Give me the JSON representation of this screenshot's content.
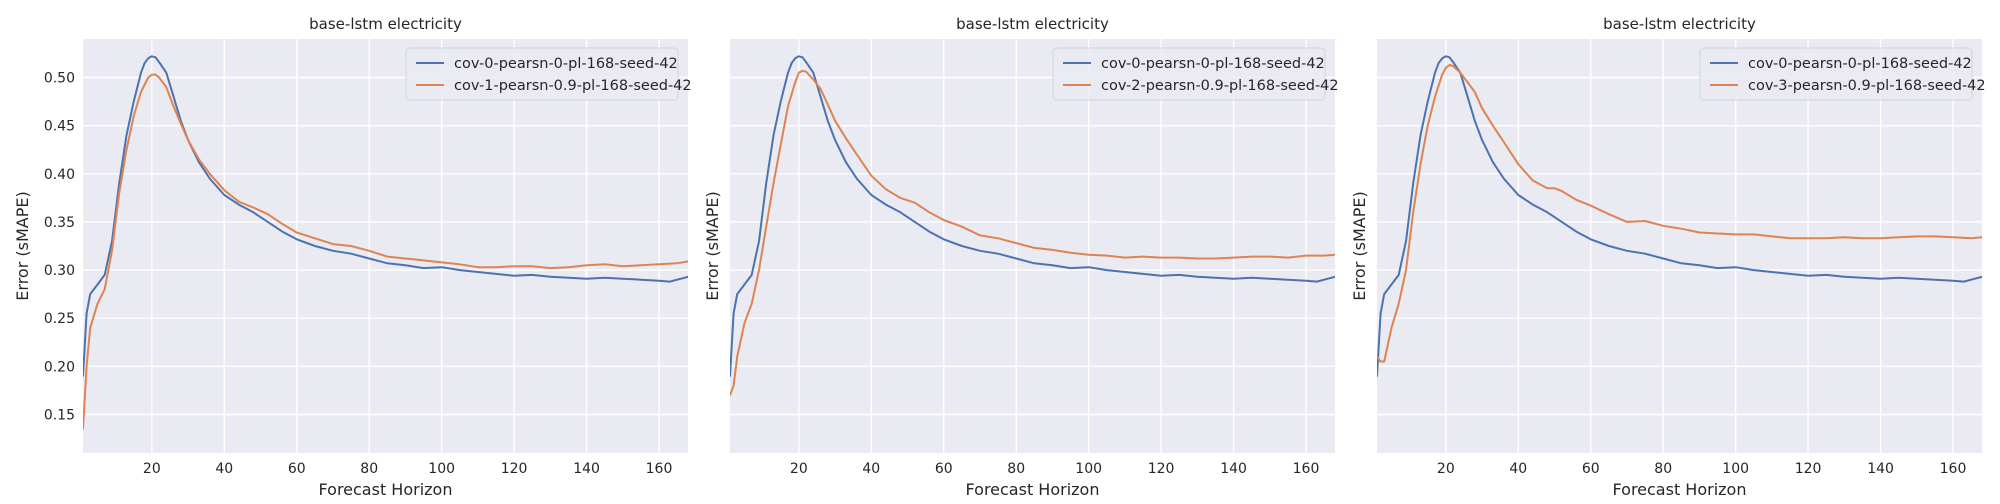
{
  "colors": {
    "background": "#ffffff",
    "plot_background": "#eaeaf2",
    "grid": "#ffffff",
    "series_blue": "#4c72b0",
    "series_orange": "#dd8452"
  },
  "chart_data": [
    {
      "type": "line",
      "title": "base-lstm electricity",
      "xlabel": "Forecast Horizon",
      "ylabel": "Error (sMAPE)",
      "xlim": [
        1,
        168
      ],
      "ylim": [
        0.11,
        0.54
      ],
      "xticks": [
        20,
        40,
        60,
        80,
        100,
        120,
        140,
        160
      ],
      "yticks": [
        0.15,
        0.2,
        0.25,
        0.3,
        0.35,
        0.4,
        0.45,
        0.5
      ],
      "show_y_tick_labels": true,
      "grid": true,
      "legend": "top-right",
      "series": [
        {
          "name": "cov-0-pearsn-0-pl-168-seed-42",
          "color": "#4c72b0",
          "x": [
            1,
            2,
            3,
            5,
            7,
            9,
            11,
            13,
            15,
            17,
            18,
            19,
            20,
            21,
            22,
            24,
            26,
            28,
            30,
            33,
            36,
            40,
            44,
            48,
            52,
            56,
            60,
            65,
            70,
            75,
            80,
            85,
            90,
            95,
            100,
            105,
            110,
            115,
            120,
            125,
            130,
            135,
            140,
            145,
            150,
            155,
            160,
            163,
            165,
            168
          ],
          "y": [
            0.19,
            0.255,
            0.275,
            0.285,
            0.295,
            0.33,
            0.39,
            0.44,
            0.475,
            0.505,
            0.515,
            0.52,
            0.522,
            0.521,
            0.516,
            0.505,
            0.48,
            0.455,
            0.435,
            0.412,
            0.395,
            0.378,
            0.368,
            0.36,
            0.35,
            0.34,
            0.332,
            0.325,
            0.32,
            0.317,
            0.312,
            0.307,
            0.305,
            0.302,
            0.303,
            0.3,
            0.298,
            0.296,
            0.294,
            0.295,
            0.293,
            0.292,
            0.291,
            0.292,
            0.291,
            0.29,
            0.289,
            0.288,
            0.29,
            0.293
          ]
        },
        {
          "name": "cov-1-pearsn-0.9-pl-168-seed-42",
          "color": "#dd8452",
          "x": [
            1,
            2,
            3,
            5,
            7,
            9,
            11,
            13,
            15,
            17,
            19,
            20,
            21,
            22,
            24,
            26,
            28,
            30,
            33,
            36,
            40,
            44,
            48,
            52,
            56,
            60,
            65,
            70,
            75,
            80,
            85,
            90,
            95,
            100,
            105,
            110,
            115,
            120,
            125,
            130,
            135,
            140,
            145,
            150,
            155,
            160,
            165,
            168
          ],
          "y": [
            0.135,
            0.2,
            0.24,
            0.265,
            0.28,
            0.32,
            0.38,
            0.425,
            0.46,
            0.485,
            0.5,
            0.503,
            0.503,
            0.5,
            0.49,
            0.47,
            0.452,
            0.435,
            0.415,
            0.4,
            0.383,
            0.371,
            0.365,
            0.358,
            0.348,
            0.339,
            0.333,
            0.327,
            0.325,
            0.32,
            0.314,
            0.312,
            0.31,
            0.308,
            0.306,
            0.303,
            0.303,
            0.304,
            0.304,
            0.302,
            0.303,
            0.305,
            0.306,
            0.304,
            0.305,
            0.306,
            0.307,
            0.309
          ]
        }
      ]
    },
    {
      "type": "line",
      "title": "base-lstm electricity",
      "xlabel": "Forecast Horizon",
      "ylabel": "Error (sMAPE)",
      "xlim": [
        1,
        168
      ],
      "ylim": [
        0.11,
        0.54
      ],
      "xticks": [
        20,
        40,
        60,
        80,
        100,
        120,
        140,
        160
      ],
      "yticks": [
        0.15,
        0.2,
        0.25,
        0.3,
        0.35,
        0.4,
        0.45,
        0.5
      ],
      "show_y_tick_labels": false,
      "grid": true,
      "legend": "top-right",
      "series": [
        {
          "name": "cov-0-pearsn-0-pl-168-seed-42",
          "color": "#4c72b0",
          "x": [
            1,
            2,
            3,
            5,
            7,
            9,
            11,
            13,
            15,
            17,
            18,
            19,
            20,
            21,
            22,
            24,
            26,
            28,
            30,
            33,
            36,
            40,
            44,
            48,
            52,
            56,
            60,
            65,
            70,
            75,
            80,
            85,
            90,
            95,
            100,
            105,
            110,
            115,
            120,
            125,
            130,
            135,
            140,
            145,
            150,
            155,
            160,
            163,
            165,
            168
          ],
          "y": [
            0.19,
            0.255,
            0.275,
            0.285,
            0.295,
            0.33,
            0.39,
            0.44,
            0.475,
            0.505,
            0.515,
            0.52,
            0.522,
            0.521,
            0.516,
            0.505,
            0.48,
            0.455,
            0.435,
            0.412,
            0.395,
            0.378,
            0.368,
            0.36,
            0.35,
            0.34,
            0.332,
            0.325,
            0.32,
            0.317,
            0.312,
            0.307,
            0.305,
            0.302,
            0.303,
            0.3,
            0.298,
            0.296,
            0.294,
            0.295,
            0.293,
            0.292,
            0.291,
            0.292,
            0.291,
            0.29,
            0.289,
            0.288,
            0.29,
            0.293
          ]
        },
        {
          "name": "cov-2-pearsn-0.9-pl-168-seed-42",
          "color": "#dd8452",
          "x": [
            1,
            2,
            3,
            5,
            7,
            9,
            11,
            13,
            15,
            17,
            19,
            20,
            21,
            22,
            24,
            26,
            28,
            30,
            33,
            36,
            40,
            44,
            48,
            52,
            56,
            60,
            65,
            70,
            75,
            80,
            85,
            90,
            95,
            100,
            105,
            110,
            115,
            120,
            125,
            130,
            135,
            140,
            145,
            150,
            155,
            160,
            165,
            168
          ],
          "y": [
            0.17,
            0.18,
            0.21,
            0.245,
            0.265,
            0.3,
            0.345,
            0.39,
            0.43,
            0.47,
            0.495,
            0.505,
            0.507,
            0.506,
            0.498,
            0.488,
            0.472,
            0.455,
            0.437,
            0.42,
            0.398,
            0.384,
            0.375,
            0.37,
            0.36,
            0.352,
            0.345,
            0.336,
            0.333,
            0.328,
            0.323,
            0.321,
            0.318,
            0.316,
            0.315,
            0.313,
            0.314,
            0.313,
            0.313,
            0.312,
            0.312,
            0.313,
            0.314,
            0.314,
            0.313,
            0.315,
            0.315,
            0.316
          ]
        }
      ]
    },
    {
      "type": "line",
      "title": "base-lstm electricity",
      "xlabel": "Forecast Horizon",
      "ylabel": "Error (sMAPE)",
      "xlim": [
        1,
        168
      ],
      "ylim": [
        0.11,
        0.54
      ],
      "xticks": [
        20,
        40,
        60,
        80,
        100,
        120,
        140,
        160
      ],
      "yticks": [
        0.15,
        0.2,
        0.25,
        0.3,
        0.35,
        0.4,
        0.45,
        0.5
      ],
      "show_y_tick_labels": false,
      "grid": true,
      "legend": "top-right",
      "series": [
        {
          "name": "cov-0-pearsn-0-pl-168-seed-42",
          "color": "#4c72b0",
          "x": [
            1,
            2,
            3,
            5,
            7,
            9,
            11,
            13,
            15,
            17,
            18,
            19,
            20,
            21,
            22,
            24,
            26,
            28,
            30,
            33,
            36,
            40,
            44,
            48,
            52,
            56,
            60,
            65,
            70,
            75,
            80,
            85,
            90,
            95,
            100,
            105,
            110,
            115,
            120,
            125,
            130,
            135,
            140,
            145,
            150,
            155,
            160,
            163,
            165,
            168
          ],
          "y": [
            0.19,
            0.255,
            0.275,
            0.285,
            0.295,
            0.33,
            0.39,
            0.44,
            0.475,
            0.505,
            0.515,
            0.52,
            0.522,
            0.521,
            0.516,
            0.505,
            0.48,
            0.455,
            0.435,
            0.412,
            0.395,
            0.378,
            0.368,
            0.36,
            0.35,
            0.34,
            0.332,
            0.325,
            0.32,
            0.317,
            0.312,
            0.307,
            0.305,
            0.302,
            0.303,
            0.3,
            0.298,
            0.296,
            0.294,
            0.295,
            0.293,
            0.292,
            0.291,
            0.292,
            0.291,
            0.29,
            0.289,
            0.288,
            0.29,
            0.293
          ]
        },
        {
          "name": "cov-3-pearsn-0.9-pl-168-seed-42",
          "color": "#dd8452",
          "x": [
            1,
            2,
            3,
            5,
            7,
            9,
            11,
            13,
            15,
            17,
            19,
            20,
            21,
            22,
            24,
            26,
            28,
            30,
            33,
            36,
            40,
            44,
            48,
            50,
            52,
            56,
            60,
            65,
            70,
            75,
            80,
            85,
            90,
            95,
            100,
            105,
            110,
            115,
            120,
            125,
            130,
            135,
            140,
            145,
            150,
            155,
            160,
            165,
            168
          ],
          "y": [
            0.21,
            0.205,
            0.205,
            0.24,
            0.265,
            0.3,
            0.36,
            0.41,
            0.45,
            0.48,
            0.503,
            0.51,
            0.513,
            0.512,
            0.505,
            0.495,
            0.485,
            0.468,
            0.45,
            0.433,
            0.41,
            0.393,
            0.385,
            0.385,
            0.382,
            0.373,
            0.367,
            0.358,
            0.35,
            0.351,
            0.346,
            0.343,
            0.339,
            0.338,
            0.337,
            0.337,
            0.335,
            0.333,
            0.333,
            0.333,
            0.334,
            0.333,
            0.333,
            0.334,
            0.335,
            0.335,
            0.334,
            0.333,
            0.334
          ]
        }
      ]
    }
  ]
}
